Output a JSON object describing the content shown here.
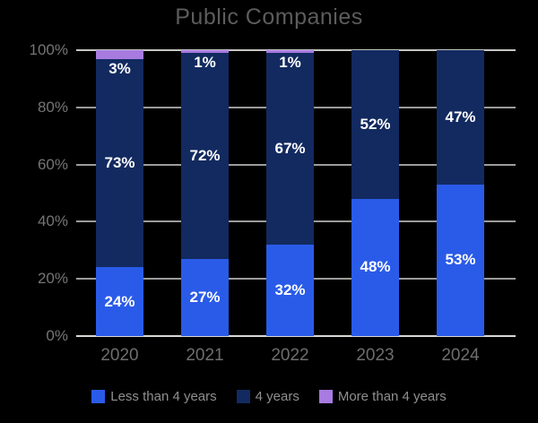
{
  "chart_data": {
    "type": "bar",
    "stacked": true,
    "orientation": "vertical",
    "title": "Public Companies",
    "categories": [
      "2020",
      "2021",
      "2022",
      "2023",
      "2024"
    ],
    "series": [
      {
        "name": "Less than 4 years",
        "color": "#2a5be8",
        "values": [
          24,
          27,
          32,
          48,
          53
        ]
      },
      {
        "name": "4 years",
        "color": "#122a60",
        "values": [
          73,
          72,
          67,
          52,
          47
        ]
      },
      {
        "name": "More than 4 years",
        "color": "#a77be0",
        "values": [
          3,
          1,
          1,
          0,
          0
        ]
      }
    ],
    "value_label_suffix": "%",
    "xlabel": "",
    "ylabel": "",
    "ylim": [
      0,
      100
    ],
    "y_ticks": [
      "0%",
      "20%",
      "40%",
      "60%",
      "80%",
      "100%"
    ],
    "grid": true,
    "legend_position": "bottom",
    "colors": {
      "background": "#000000",
      "title_text": "#5c5c5c",
      "axis_tick_text": "#757575",
      "x_tick_text": "#6e6e6e",
      "legend_text": "#8f8f8f",
      "gridline": "#9c9c9c",
      "top_line": "#c6c6c2",
      "baseline": "#d8d8d4",
      "bar_value_text": "#ffffff"
    }
  }
}
